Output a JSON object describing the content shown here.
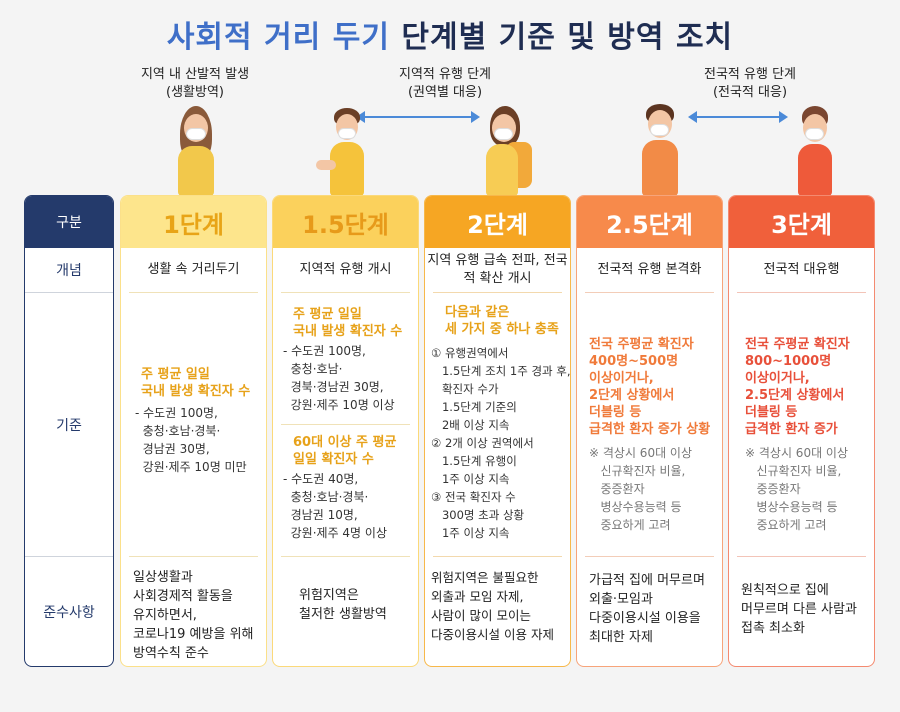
{
  "title": {
    "part1": "사회적 거리 두기",
    "part2": " 단계별 기준 및 방역 조치"
  },
  "phases": [
    {
      "line1": "지역 내 산발적 발생",
      "line2": "(생활방역)"
    },
    {
      "line1": "지역적 유행 단계",
      "line2": "(권역별 대응)"
    },
    {
      "line1": "전국적 유행 단계",
      "line2": "(전국적 대응)"
    }
  ],
  "row_labels": {
    "header": "구분",
    "concept": "개념",
    "criteria": "기준",
    "compliance": "준수사항"
  },
  "levels": [
    {
      "name": "1단계",
      "concept": "생활 속 거리두기",
      "criteria_hl": "주 평균 일일\n국내 발생 확진자 수",
      "criteria_list": "- 수도권 100명,\n  충청·호남·경북·\n  경남권 30명,\n  강원·제주 10명 미만",
      "compliance": "일상생활과\n사회경제적 활동을\n유지하면서,\n코로나19 예방을 위해\n방역수칙 준수"
    },
    {
      "name": "1.5단계",
      "concept": "지역적 유행 개시",
      "criteria_hl": "주 평균 일일\n국내 발생 확진자 수",
      "criteria_list": "- 수도권 100명,\n  충청·호남·\n  경북·경남권 30명,\n  강원·제주 10명 이상",
      "criteria_hl2": "60대 이상 주 평균\n일일 확진자 수",
      "criteria_list2": "- 수도권 40명,\n  충청·호남·경북·\n  경남권 10명,\n  강원·제주 4명 이상",
      "compliance": "위험지역은\n철저한 생활방역"
    },
    {
      "name": "2단계",
      "concept": "지역 유행 급속 전파,\n전국적 확산 개시",
      "criteria_hl": "다음과 같은\n세 가지 중 하나 충족",
      "criteria_list": "① 유행권역에서\n   1.5단계 조치 1주 경과 후,\n   확진자 수가\n   1.5단계 기준의\n   2배 이상 지속\n② 2개 이상 권역에서\n   1.5단계 유행이\n   1주 이상 지속\n③ 전국 확진자 수\n   300명 초과 상황\n   1주 이상 지속",
      "compliance": "위험지역은 불필요한\n외출과 모임 자제,\n사람이 많이 모이는\n다중이용시설 이용 자제"
    },
    {
      "name": "2.5단계",
      "concept": "전국적 유행 본격화",
      "criteria_hl": "전국 주평균 확진자\n400명~500명\n이상이거나,\n2단계 상황에서\n더블링 등\n급격한 환자 증가 상황",
      "criteria_note": "※ 격상시 60대 이상\n   신규확진자 비율,\n   중증환자\n   병상수용능력 등\n   중요하게 고려",
      "compliance": "가급적 집에 머무르며\n외출·모임과\n다중이용시설 이용을\n최대한 자제"
    },
    {
      "name": "3단계",
      "concept": "전국적 대유행",
      "criteria_hl": "전국 주평균 확진자\n800~1000명\n이상이거나,\n2.5단계 상황에서\n더블링 등\n급격한 환자 증가",
      "criteria_note": "※ 격상시 60대 이상\n   신규확진자 비율,\n   중증환자\n   병상수용능력 등\n   중요하게 고려",
      "compliance": "원칙적으로 집에\n머무르며 다른 사람과\n접촉 최소화"
    }
  ],
  "colors": {
    "navy": "#243a6b",
    "level1": "#fbd75a",
    "level1_text": "#e8a417",
    "level15": "#f9c84a",
    "level15_text": "#e79a1a",
    "level2": "#f6a623",
    "level2_text": "#ffffff",
    "level25": "#f78a4b",
    "level25_text": "#ffffff",
    "level3": "#f0603b",
    "level3_text": "#ffffff",
    "hl_yellow": "#e7a21a",
    "hl_orange": "#f07a3a",
    "hl_red": "#e8503a"
  }
}
